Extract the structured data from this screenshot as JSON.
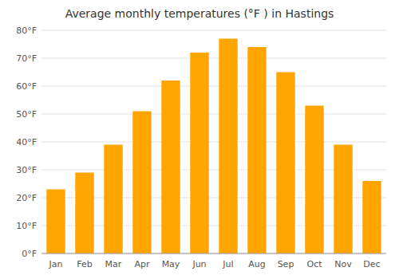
{
  "chart_data": {
    "type": "bar",
    "title": "Average monthly temperatures (°F ) in Hastings",
    "categories": [
      "Jan",
      "Feb",
      "Mar",
      "Apr",
      "May",
      "Jun",
      "Jul",
      "Aug",
      "Sep",
      "Oct",
      "Nov",
      "Dec"
    ],
    "values": [
      23,
      29,
      39,
      51,
      62,
      72,
      77,
      74,
      65,
      53,
      39,
      26
    ],
    "color": "#FFA500",
    "ylim": [
      0,
      80
    ],
    "yticks": [
      {
        "value": 0,
        "label": "0°F"
      },
      {
        "value": 10,
        "label": "10°F"
      },
      {
        "value": 20,
        "label": "20°F"
      },
      {
        "value": 30,
        "label": "30°F"
      },
      {
        "value": 40,
        "label": "40°F"
      },
      {
        "value": 50,
        "label": "50°F"
      },
      {
        "value": 60,
        "label": "60°F"
      },
      {
        "value": 70,
        "label": "70°F"
      },
      {
        "value": 80,
        "label": "80°F"
      }
    ],
    "grid": true
  }
}
